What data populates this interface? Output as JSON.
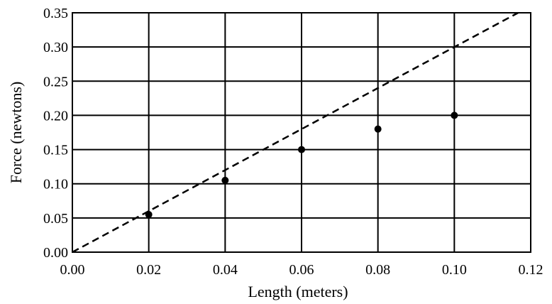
{
  "chart_data": {
    "type": "scatter",
    "title": "",
    "xlabel": "Length (meters)",
    "ylabel": "Force (newtons)",
    "xlim": [
      0.0,
      0.12
    ],
    "ylim": [
      0.0,
      0.35
    ],
    "grid": true,
    "x_ticks": [
      "0.00",
      "0.02",
      "0.04",
      "0.06",
      "0.08",
      "0.10",
      "0.12"
    ],
    "y_ticks": [
      "0.00",
      "0.05",
      "0.10",
      "0.15",
      "0.20",
      "0.25",
      "0.30",
      "0.35"
    ],
    "series": [
      {
        "x": [
          0.02,
          0.04,
          0.06,
          0.08,
          0.1
        ],
        "y": [
          0.055,
          0.105,
          0.15,
          0.18,
          0.2
        ],
        "style": "points",
        "color": "#000000"
      },
      {
        "x": [
          0.0,
          0.1167
        ],
        "y": [
          0.0,
          0.35
        ],
        "style": "dashed-line",
        "color": "#000000"
      }
    ]
  }
}
